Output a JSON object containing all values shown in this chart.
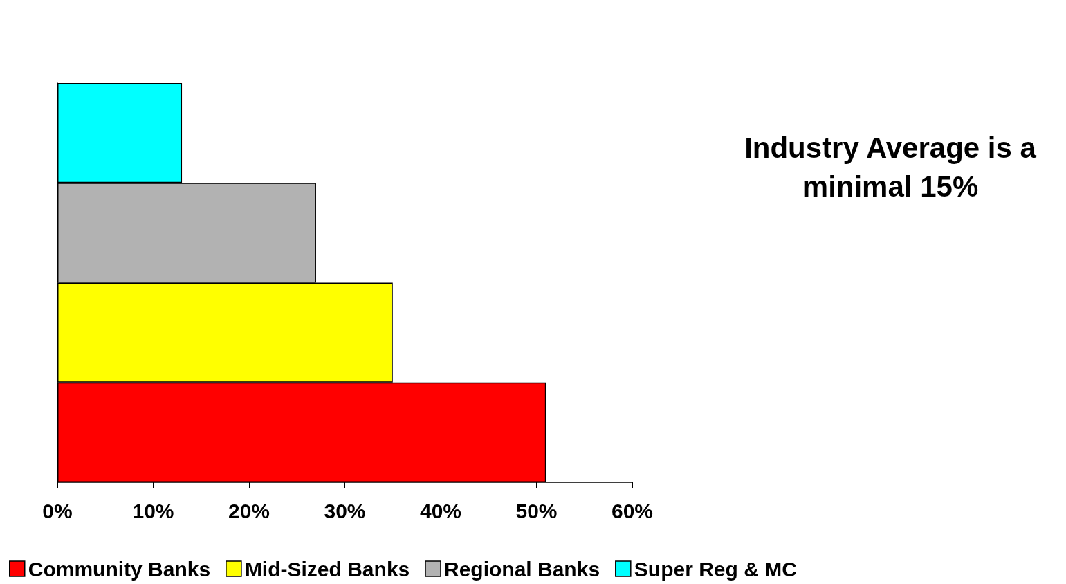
{
  "chart_data": {
    "type": "bar",
    "orientation": "horizontal",
    "stacked": true,
    "categories": [
      null,
      null,
      null,
      null
    ],
    "series": [
      {
        "name": "Community Banks",
        "color": "#ff0000",
        "values": [
          null,
          null,
          null,
          51
        ]
      },
      {
        "name": "Mid-Sized Banks",
        "color": "#ffff00",
        "values": [
          null,
          null,
          35,
          null
        ]
      },
      {
        "name": "Regional Banks",
        "color": "#b2b2b2",
        "values": [
          null,
          27,
          null,
          null
        ]
      },
      {
        "name": "Super Reg & MC",
        "color": "#00ffff",
        "values": [
          13,
          null,
          null,
          null
        ]
      }
    ],
    "xlim": [
      0,
      60
    ],
    "xticks": [
      {
        "value": 0,
        "label": "0%"
      },
      {
        "value": 10,
        "label": "10%"
      },
      {
        "value": 20,
        "label": "20%"
      },
      {
        "value": 30,
        "label": "30%"
      },
      {
        "value": 40,
        "label": "40%"
      },
      {
        "value": 50,
        "label": "50%"
      },
      {
        "value": 60,
        "label": "60%"
      }
    ],
    "tick_labels": "x",
    "grid": false,
    "legend": "bottom",
    "annotations": [
      "Industry Average is a minimal 15%"
    ]
  }
}
